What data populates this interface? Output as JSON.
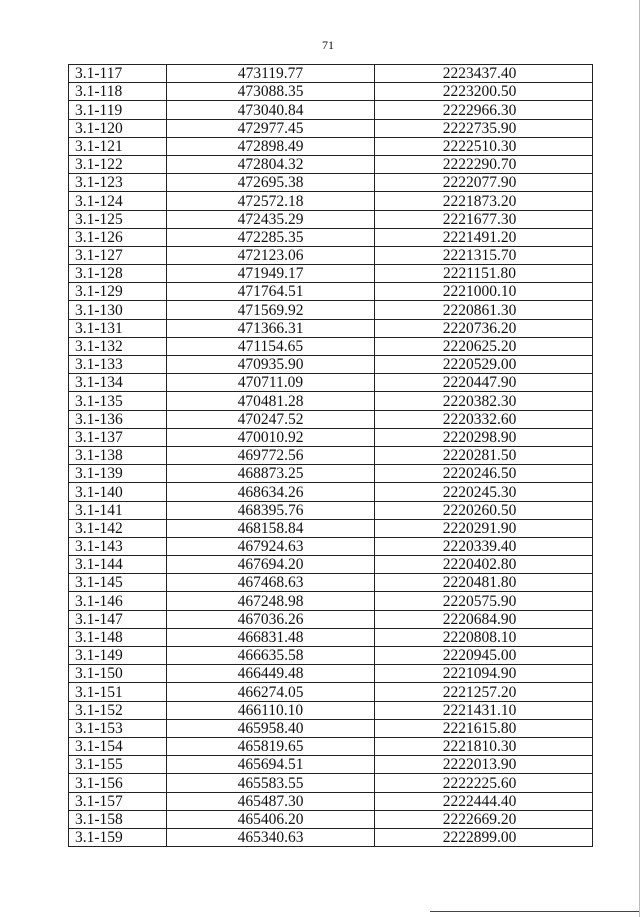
{
  "page_number": "71",
  "rows": [
    [
      "3.1-117",
      "473119.77",
      "2223437.40"
    ],
    [
      "3.1-118",
      "473088.35",
      "2223200.50"
    ],
    [
      "3.1-119",
      "473040.84",
      "2222966.30"
    ],
    [
      "3.1-120",
      "472977.45",
      "2222735.90"
    ],
    [
      "3.1-121",
      "472898.49",
      "2222510.30"
    ],
    [
      "3.1-122",
      "472804.32",
      "2222290.70"
    ],
    [
      "3.1-123",
      "472695.38",
      "2222077.90"
    ],
    [
      "3.1-124",
      "472572.18",
      "2221873.20"
    ],
    [
      "3.1-125",
      "472435.29",
      "2221677.30"
    ],
    [
      "3.1-126",
      "472285.35",
      "2221491.20"
    ],
    [
      "3.1-127",
      "472123.06",
      "2221315.70"
    ],
    [
      "3.1-128",
      "471949.17",
      "2221151.80"
    ],
    [
      "3.1-129",
      "471764.51",
      "2221000.10"
    ],
    [
      "3.1-130",
      "471569.92",
      "2220861.30"
    ],
    [
      "3.1-131",
      "471366.31",
      "2220736.20"
    ],
    [
      "3.1-132",
      "471154.65",
      "2220625.20"
    ],
    [
      "3.1-133",
      "470935.90",
      "2220529.00"
    ],
    [
      "3.1-134",
      "470711.09",
      "2220447.90"
    ],
    [
      "3.1-135",
      "470481.28",
      "2220382.30"
    ],
    [
      "3.1-136",
      "470247.52",
      "2220332.60"
    ],
    [
      "3.1-137",
      "470010.92",
      "2220298.90"
    ],
    [
      "3.1-138",
      "469772.56",
      "2220281.50"
    ],
    [
      "3.1-139",
      "468873.25",
      "2220246.50"
    ],
    [
      "3.1-140",
      "468634.26",
      "2220245.30"
    ],
    [
      "3.1-141",
      "468395.76",
      "2220260.50"
    ],
    [
      "3.1-142",
      "468158.84",
      "2220291.90"
    ],
    [
      "3.1-143",
      "467924.63",
      "2220339.40"
    ],
    [
      "3.1-144",
      "467694.20",
      "2220402.80"
    ],
    [
      "3.1-145",
      "467468.63",
      "2220481.80"
    ],
    [
      "3.1-146",
      "467248.98",
      "2220575.90"
    ],
    [
      "3.1-147",
      "467036.26",
      "2220684.90"
    ],
    [
      "3.1-148",
      "466831.48",
      "2220808.10"
    ],
    [
      "3.1-149",
      "466635.58",
      "2220945.00"
    ],
    [
      "3.1-150",
      "466449.48",
      "2221094.90"
    ],
    [
      "3.1-151",
      "466274.05",
      "2221257.20"
    ],
    [
      "3.1-152",
      "466110.10",
      "2221431.10"
    ],
    [
      "3.1-153",
      "465958.40",
      "2221615.80"
    ],
    [
      "3.1-154",
      "465819.65",
      "2221810.30"
    ],
    [
      "3.1-155",
      "465694.51",
      "2222013.90"
    ],
    [
      "3.1-156",
      "465583.55",
      "2222225.60"
    ],
    [
      "3.1-157",
      "465487.30",
      "2222444.40"
    ],
    [
      "3.1-158",
      "465406.20",
      "2222669.20"
    ],
    [
      "3.1-159",
      "465340.63",
      "2222899.00"
    ]
  ]
}
